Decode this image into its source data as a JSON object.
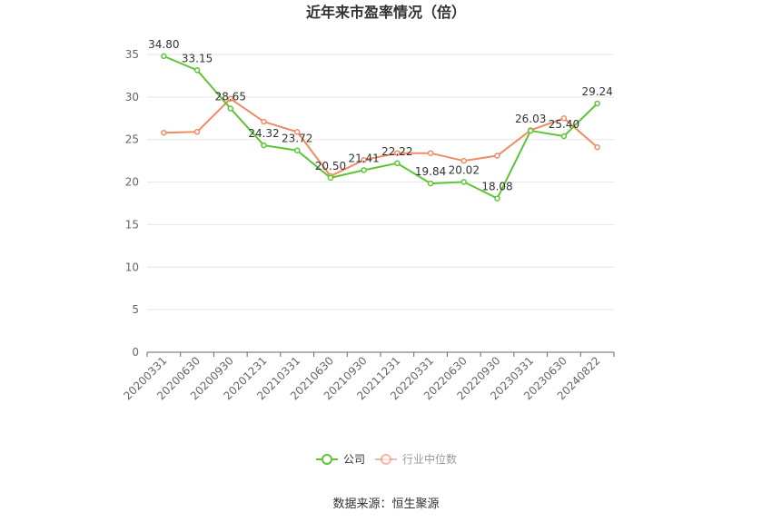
{
  "chart_data": {
    "type": "line",
    "title": "近年来市盈率情况（倍）",
    "categories": [
      "20200331",
      "20200630",
      "20200930",
      "20201231",
      "20210331",
      "20210630",
      "20210930",
      "20211231",
      "20220331",
      "20220630",
      "20220930",
      "20230331",
      "20230630",
      "20240822"
    ],
    "ylim": [
      0,
      35
    ],
    "yticks": [
      0,
      5,
      10,
      15,
      20,
      25,
      30,
      35
    ],
    "grid": true,
    "legend_position": "bottom",
    "series": [
      {
        "name": "公司",
        "color": "#5cc534",
        "values": [
          34.8,
          33.15,
          28.65,
          24.32,
          23.72,
          20.5,
          21.41,
          22.22,
          19.84,
          20.02,
          18.08,
          26.03,
          25.4,
          29.24
        ],
        "labels": [
          "34.80",
          "33.15",
          "28.65",
          "24.32",
          "23.72",
          "20.50",
          "21.41",
          "22.22",
          "19.84",
          "20.02",
          "18.08",
          "26.03",
          "25.40",
          "29.24"
        ]
      },
      {
        "name": "行业中位数",
        "color": "#f08c64",
        "values": [
          25.8,
          25.9,
          29.8,
          27.1,
          25.9,
          20.7,
          22.6,
          23.4,
          23.4,
          22.5,
          23.1,
          26.1,
          27.5,
          24.1
        ]
      }
    ]
  },
  "footer": {
    "source": "数据来源：恒生聚源"
  }
}
